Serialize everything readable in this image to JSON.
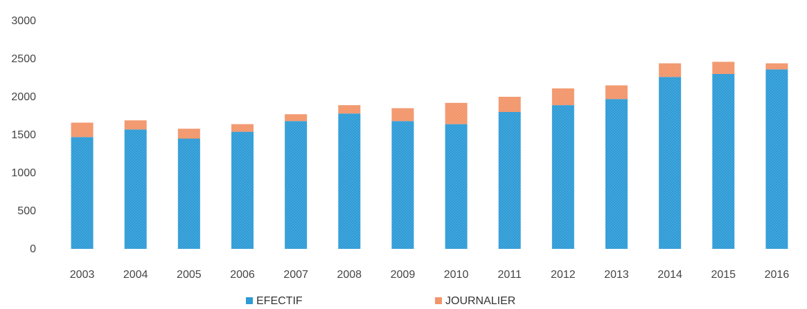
{
  "chart_data": {
    "type": "bar",
    "stacked": true,
    "categories": [
      "2003",
      "2004",
      "2005",
      "2006",
      "2007",
      "2008",
      "2009",
      "2010",
      "2011",
      "2012",
      "2013",
      "2014",
      "2015",
      "2016"
    ],
    "series": [
      {
        "name": "EFECTIF",
        "color": "#2E9BD6",
        "values": [
          1470,
          1570,
          1450,
          1540,
          1680,
          1780,
          1680,
          1640,
          1800,
          1890,
          1970,
          2260,
          2300,
          2360
        ]
      },
      {
        "name": "JOURNALIER",
        "color": "#F2956A",
        "values": [
          190,
          120,
          130,
          100,
          90,
          110,
          170,
          280,
          200,
          220,
          180,
          180,
          160,
          80
        ]
      }
    ],
    "y_ticks": [
      "0",
      "500",
      "1000",
      "1500",
      "2000",
      "2500",
      "3000"
    ],
    "ylim": [
      0,
      3000
    ],
    "grid": false,
    "legend_position": "bottom"
  }
}
